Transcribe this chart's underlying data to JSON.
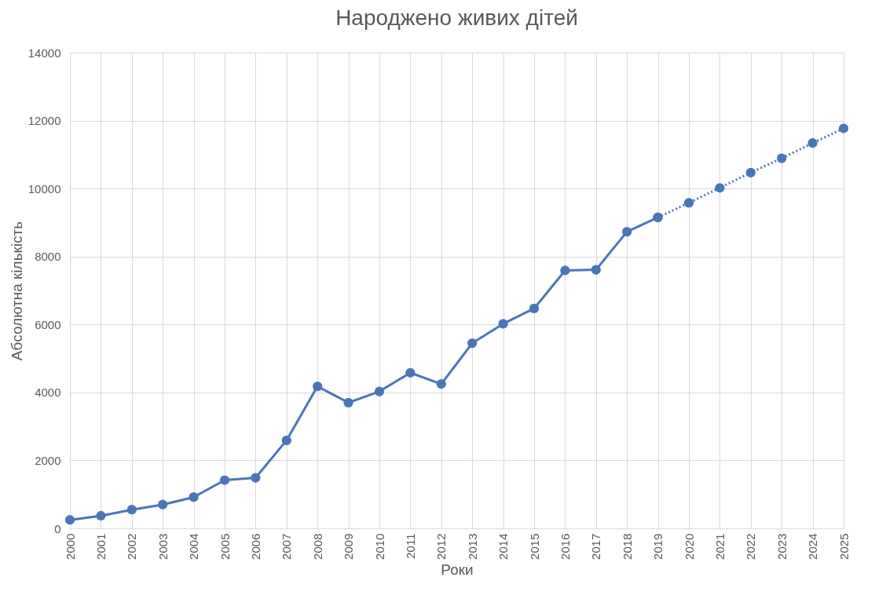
{
  "chart_data": {
    "type": "line",
    "title": "Народжено живих дітей",
    "xlabel": "Роки",
    "ylabel": "Абсолютна кількість",
    "categories": [
      "2000",
      "2001",
      "2002",
      "2003",
      "2004",
      "2005",
      "2006",
      "2007",
      "2008",
      "2009",
      "2010",
      "2011",
      "2012",
      "2013",
      "2014",
      "2015",
      "2016",
      "2017",
      "2018",
      "2019",
      "2020",
      "2021",
      "2022",
      "2023",
      "2024",
      "2025"
    ],
    "series": [
      {
        "color": "#4a76b8",
        "line_style": "solid",
        "values": [
          250,
          370,
          550,
          700,
          920,
          1420,
          1490,
          2590,
          4180,
          3700,
          4030,
          4580,
          4250,
          5450,
          6020,
          6470,
          7590,
          7610,
          8730,
          9150,
          null,
          null,
          null,
          null,
          null,
          null
        ]
      },
      {
        "color": "#4a76b8",
        "line_style": "dotted",
        "values": [
          null,
          null,
          null,
          null,
          null,
          null,
          null,
          null,
          null,
          null,
          null,
          null,
          null,
          null,
          null,
          null,
          null,
          null,
          null,
          9150,
          9580,
          10020,
          10470,
          10890,
          11340,
          11770
        ]
      }
    ],
    "ylim": [
      0,
      14000
    ],
    "yticks": [
      0,
      2000,
      4000,
      6000,
      8000,
      10000,
      12000,
      14000
    ],
    "grid": true,
    "marker": "circle"
  }
}
